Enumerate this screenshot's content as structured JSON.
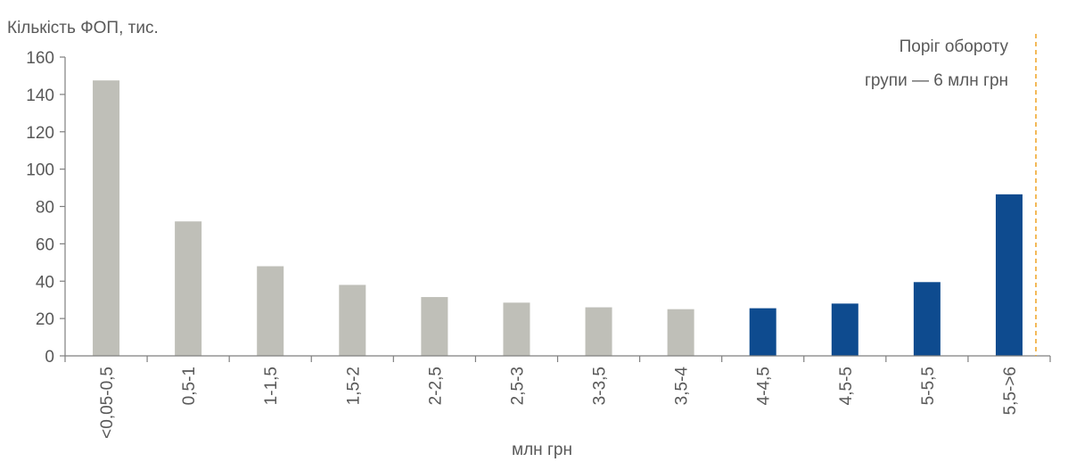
{
  "chart_data": {
    "type": "bar",
    "ylabel": "Кількість ФОП, тис.",
    "xlabel": "млн грн",
    "ylim": [
      0,
      160
    ],
    "yticks": [
      0,
      20,
      40,
      60,
      80,
      100,
      120,
      140,
      160
    ],
    "grid": false,
    "categories": [
      "<0,05-0,5",
      "0,5-1",
      "1-1,5",
      "1,5-2",
      "2-2,5",
      "2,5-3",
      "3-3,5",
      "3,5-4",
      "4-4,5",
      "4,5-5",
      "5-5,5",
      "5,5->6"
    ],
    "values": [
      147.5,
      72,
      48,
      38,
      31.5,
      28.5,
      26,
      25,
      25.5,
      28,
      39.5,
      86.5
    ],
    "bar_colors": [
      "#bfbfb8",
      "#bfbfb8",
      "#bfbfb8",
      "#bfbfb8",
      "#bfbfb8",
      "#bfbfb8",
      "#bfbfb8",
      "#bfbfb8",
      "#0e4b8f",
      "#0e4b8f",
      "#0e4b8f",
      "#0e4b8f"
    ],
    "threshold": {
      "label_line1": "Поріг обороту",
      "label_line2": "групи — 6 млн грн",
      "color": "#f0a830"
    }
  }
}
